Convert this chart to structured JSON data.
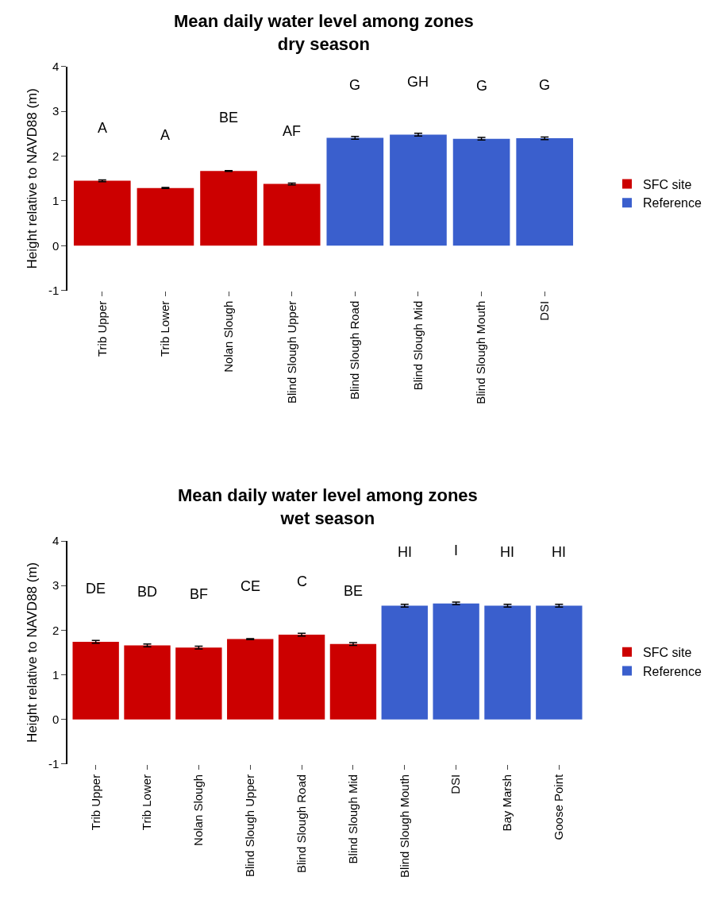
{
  "chart_data": [
    {
      "type": "bar",
      "title": "Mean daily water level among zones\ndry season",
      "ylabel": "Height relative to NAVD88 (m)",
      "categories": [
        "Trib Upper",
        "Trib Lower",
        "Nolan Slough",
        "Blind Slough Upper",
        "Blind Slough Road",
        "Blind Slough Mid",
        "Blind Slough Mouth",
        "DSI"
      ],
      "series": [
        {
          "name": "SFC site",
          "color": "#cc0000",
          "values": [
            1.45,
            1.29,
            1.67,
            1.38,
            null,
            null,
            null,
            null
          ],
          "errors": [
            0.02,
            0.01,
            0.01,
            0.02,
            null,
            null,
            null,
            null
          ]
        },
        {
          "name": "Reference",
          "color": "#3a5fcd",
          "values": [
            null,
            null,
            null,
            null,
            2.41,
            2.48,
            2.39,
            2.4
          ],
          "errors": [
            null,
            null,
            null,
            null,
            0.03,
            0.03,
            0.03,
            0.03
          ]
        }
      ],
      "ylim": [
        -1,
        4
      ],
      "yticks": [
        -1,
        0,
        1,
        2,
        3,
        4
      ],
      "legend": "right",
      "annotations": [
        "A",
        "A",
        "BE",
        "AF",
        "G",
        "GH",
        "G",
        "G"
      ]
    },
    {
      "type": "bar",
      "title": "Mean daily water level among zones\nwet season",
      "ylabel": "Height relative to NAVD88 (m)",
      "categories": [
        "Trib Upper",
        "Trib Lower",
        "Nolan Slough",
        "Blind Slough Upper",
        "Blind Slough Road",
        "Blind Slough Mid",
        "Blind Slough Mouth",
        "DSI",
        "Bay Marsh",
        "Goose Point"
      ],
      "series": [
        {
          "name": "SFC site",
          "color": "#cc0000",
          "values": [
            1.74,
            1.66,
            1.61,
            1.8,
            1.9,
            1.69,
            null,
            null,
            null,
            null
          ],
          "errors": [
            0.03,
            0.03,
            0.03,
            0.01,
            0.03,
            0.03,
            null,
            null,
            null,
            null
          ]
        },
        {
          "name": "Reference",
          "color": "#3a5fcd",
          "values": [
            null,
            null,
            null,
            null,
            null,
            null,
            2.55,
            2.6,
            2.55,
            2.55
          ],
          "errors": [
            null,
            null,
            null,
            null,
            null,
            null,
            0.03,
            0.03,
            0.03,
            0.03
          ]
        }
      ],
      "ylim": [
        -1,
        4
      ],
      "yticks": [
        -1,
        0,
        1,
        2,
        3,
        4
      ],
      "legend": "right",
      "annotations": [
        "DE",
        "BD",
        "BF",
        "CE",
        "C",
        "BE",
        "HI",
        "I",
        "HI",
        "HI"
      ]
    }
  ]
}
